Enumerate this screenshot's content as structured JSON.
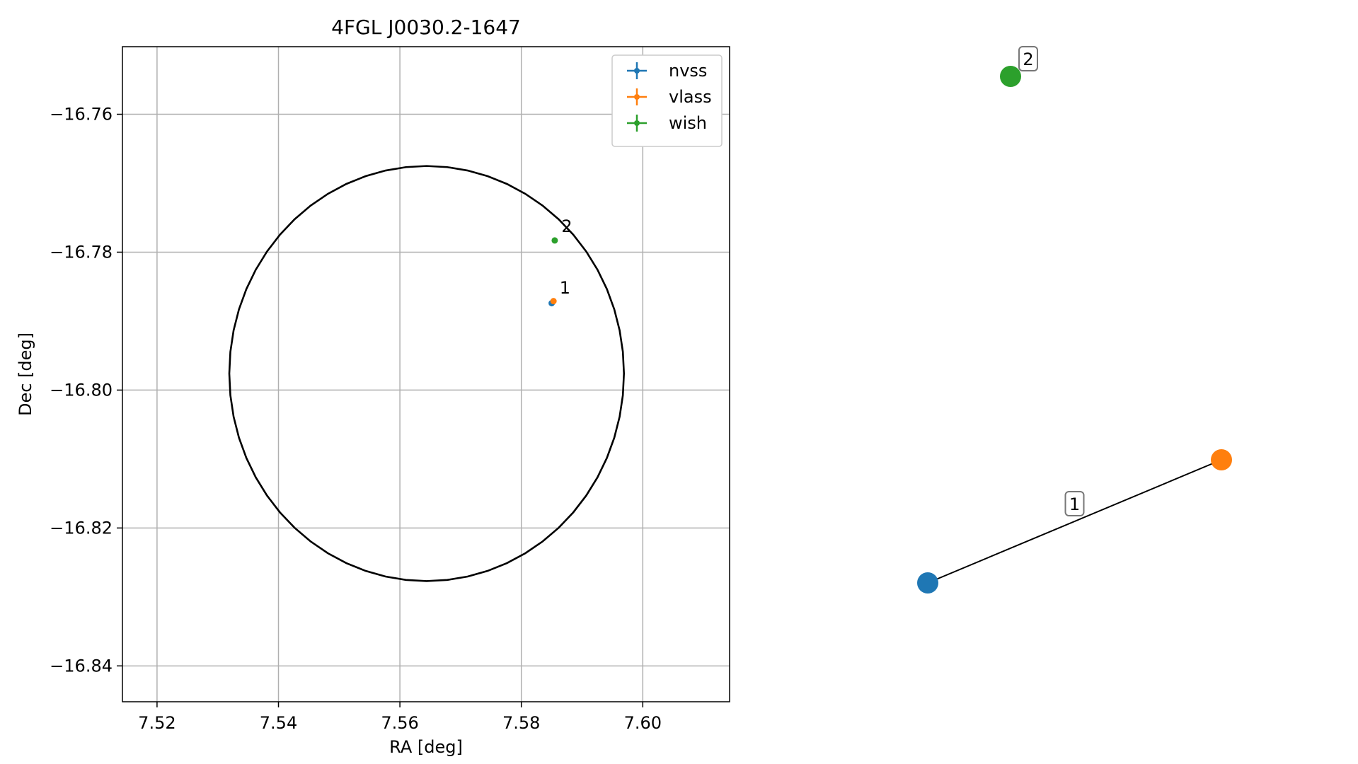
{
  "chart_data": [
    {
      "type": "scatter",
      "title": "4FGL J0030.2-1647",
      "xlabel": "RA [deg]",
      "ylabel": "Dec [deg]",
      "xlim": [
        7.5143,
        7.6143
      ],
      "ylim": [
        -16.8452,
        -16.7502
      ],
      "x_ticks": [
        7.52,
        7.54,
        7.56,
        7.58,
        7.6
      ],
      "x_tick_labels": [
        "7.52",
        "7.54",
        "7.56",
        "7.58",
        "7.60"
      ],
      "y_ticks": [
        -16.76,
        -16.78,
        -16.8,
        -16.82,
        -16.84
      ],
      "y_tick_labels": [
        "−16.76",
        "−16.78",
        "−16.80",
        "−16.82",
        "−16.84"
      ],
      "grid": true,
      "legend_position": "top-right",
      "series": [
        {
          "name": "nvss",
          "color": "#1f77b4",
          "points": [
            {
              "x": 7.585,
              "y": -16.7874
            }
          ]
        },
        {
          "name": "vlass",
          "color": "#ff7f0e",
          "points": [
            {
              "x": 7.5853,
              "y": -16.7871
            }
          ]
        },
        {
          "name": "wish",
          "color": "#2ca02c",
          "points": [
            {
              "x": 7.5855,
              "y": -16.7783
            }
          ]
        }
      ],
      "annotations": [
        {
          "text": "1",
          "x": 7.5863,
          "y": -16.786
        },
        {
          "text": "2",
          "x": 7.5866,
          "y": -16.7771
        }
      ],
      "ellipse": {
        "center": [
          7.5644,
          -16.7976
        ],
        "ra_axis": 0.0325,
        "dec_axis": 0.0301,
        "color": "#000000"
      }
    },
    {
      "type": "network",
      "nodes": [
        {
          "name": "nvss",
          "color": "#1f77b4"
        },
        {
          "name": "vlass",
          "color": "#ff7f0e"
        },
        {
          "name": "wish",
          "color": "#2ca02c"
        }
      ],
      "edges": [
        {
          "from": "nvss",
          "to": "vlass",
          "label": "1"
        }
      ],
      "node_labels": [
        {
          "node": "wish",
          "text": "2"
        }
      ]
    }
  ]
}
